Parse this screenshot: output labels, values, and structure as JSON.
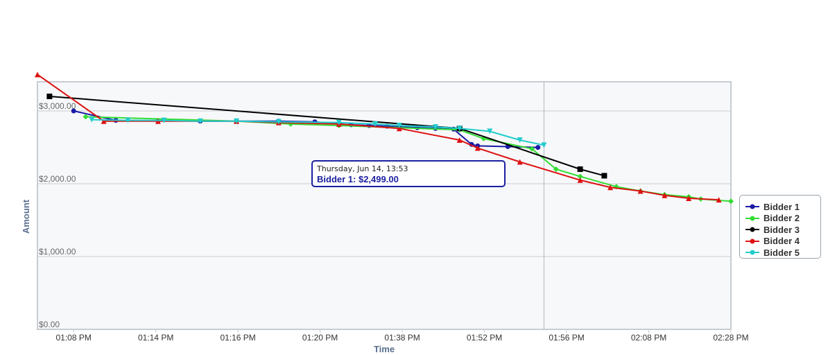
{
  "chart_data": {
    "type": "line",
    "title": "",
    "xlabel": "Time",
    "ylabel": "Amount",
    "categories": [
      "01:08 PM",
      "01:14 PM",
      "01:16 PM",
      "01:20 PM",
      "01:38 PM",
      "01:52 PM",
      "01:56 PM",
      "02:08 PM",
      "02:28 PM"
    ],
    "ylim": [
      0,
      3400
    ],
    "y_ticks": [
      {
        "value": 0,
        "label": "$0.00"
      },
      {
        "value": 1000,
        "label": "$1,000.00"
      },
      {
        "value": 2000,
        "label": "$2,000.00"
      },
      {
        "value": 3000,
        "label": "$3,000.00"
      }
    ],
    "grid": true,
    "legend_position": "right",
    "series": [
      {
        "name": "Bidder 1",
        "color": "#1a1aa6",
        "marker": "circle",
        "points": [
          [
            0.6,
            3000
          ],
          [
            1.3,
            2870
          ],
          [
            2.0,
            2865
          ],
          [
            2.7,
            2860
          ],
          [
            3.3,
            2860
          ],
          [
            4.0,
            2860
          ],
          [
            4.6,
            2850
          ],
          [
            5.0,
            2820
          ],
          [
            5.2,
            2810
          ],
          [
            5.5,
            2800
          ],
          [
            5.8,
            2790
          ],
          [
            6.0,
            2780
          ],
          [
            6.3,
            2770
          ],
          [
            6.6,
            2760
          ],
          [
            6.9,
            2750
          ],
          [
            7.2,
            2540
          ],
          [
            7.3,
            2520
          ],
          [
            7.8,
            2510
          ],
          [
            8.3,
            2499
          ]
        ]
      },
      {
        "name": "Bidder 2",
        "color": "#33dd33",
        "marker": "diamond",
        "points": [
          [
            0.8,
            2920
          ],
          [
            3.3,
            2860
          ],
          [
            4.2,
            2820
          ],
          [
            5.0,
            2800
          ],
          [
            7.0,
            2740
          ],
          [
            7.4,
            2620
          ],
          [
            8.2,
            2480
          ],
          [
            8.6,
            2200
          ],
          [
            9.0,
            2100
          ],
          [
            9.6,
            1960
          ],
          [
            10.0,
            1900
          ],
          [
            10.4,
            1850
          ],
          [
            10.8,
            1820
          ],
          [
            11.0,
            1790
          ],
          [
            11.5,
            1760
          ]
        ]
      },
      {
        "name": "Bidder 3",
        "color": "#000000",
        "marker": "square",
        "points": [
          [
            0.2,
            3200
          ],
          [
            7.0,
            2760
          ],
          [
            9.0,
            2200
          ],
          [
            9.4,
            2110
          ]
        ]
      },
      {
        "name": "Bidder 4",
        "color": "#dd1111",
        "marker": "triangle",
        "points": [
          [
            0.0,
            3500
          ],
          [
            1.1,
            2860
          ],
          [
            2.0,
            2860
          ],
          [
            3.3,
            2860
          ],
          [
            4.0,
            2840
          ],
          [
            5.0,
            2820
          ],
          [
            6.0,
            2760
          ],
          [
            7.0,
            2600
          ],
          [
            7.3,
            2490
          ],
          [
            8.0,
            2300
          ],
          [
            9.0,
            2050
          ],
          [
            9.5,
            1950
          ],
          [
            10.0,
            1900
          ],
          [
            10.4,
            1840
          ],
          [
            10.8,
            1800
          ],
          [
            11.3,
            1780
          ]
        ]
      },
      {
        "name": "Bidder 5",
        "color": "#22cccc",
        "marker": "triangle-down",
        "points": [
          [
            0.9,
            2880
          ],
          [
            1.5,
            2870
          ],
          [
            2.1,
            2870
          ],
          [
            2.7,
            2860
          ],
          [
            3.3,
            2860
          ],
          [
            4.0,
            2850
          ],
          [
            5.0,
            2840
          ],
          [
            5.6,
            2820
          ],
          [
            6.0,
            2800
          ],
          [
            6.6,
            2780
          ],
          [
            7.0,
            2760
          ],
          [
            7.5,
            2720
          ],
          [
            8.0,
            2600
          ],
          [
            8.4,
            2530
          ]
        ]
      }
    ],
    "crosshair_x": 8.4,
    "tooltip": {
      "date": "Thursday, Jun 14, 13:53",
      "series": "Bidder 1:",
      "value": "$2,499.00"
    }
  }
}
